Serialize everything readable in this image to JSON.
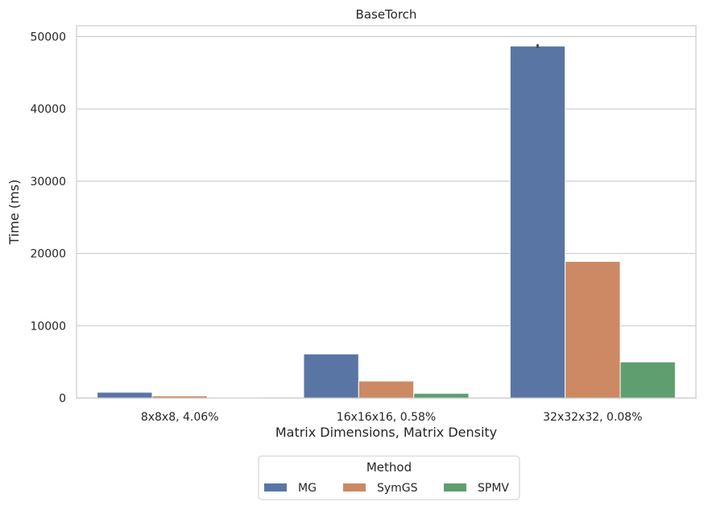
{
  "chart_data": {
    "type": "bar",
    "title": "BaseTorch",
    "xlabel": "Matrix Dimensions, Matrix Density",
    "ylabel": "Time (ms)",
    "categories": [
      "8x8x8, 4.06%",
      "16x16x16, 0.58%",
      "32x32x32, 0.08%"
    ],
    "yticks": [
      0,
      10000,
      20000,
      30000,
      40000,
      50000
    ],
    "ylim": [
      0,
      51500
    ],
    "grid": true,
    "legend": {
      "title": "Method",
      "placement": "bottom-center"
    },
    "series": [
      {
        "name": "MG",
        "color": "#5975a4",
        "values": [
          800,
          6100,
          48700
        ],
        "error": [
          0,
          0,
          250
        ]
      },
      {
        "name": "SymGS",
        "color": "#cc8963",
        "values": [
          300,
          2350,
          18900
        ],
        "error": [
          0,
          0,
          0
        ]
      },
      {
        "name": "SPMV",
        "color": "#5f9e6e",
        "values": [
          60,
          650,
          5000
        ],
        "error": [
          0,
          0,
          0
        ]
      }
    ]
  }
}
